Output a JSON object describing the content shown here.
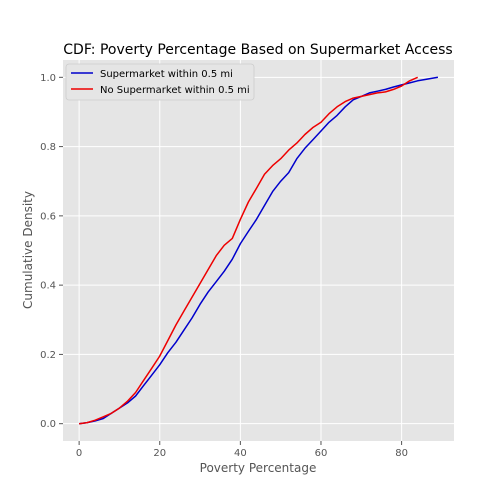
{
  "chart_data": {
    "type": "line",
    "title": "CDF: Poverty Percentage Based on Supermarket Access",
    "xlabel": "Poverty Percentage",
    "ylabel": "Cumulative Density",
    "xlim": [
      -4,
      93
    ],
    "ylim": [
      -0.05,
      1.05
    ],
    "xticks": [
      "0",
      "20",
      "40",
      "60",
      "80"
    ],
    "yticks": [
      "0.0",
      "0.2",
      "0.4",
      "0.6",
      "0.8",
      "1.0"
    ],
    "grid": true,
    "legend_position": "upper-left",
    "series": [
      {
        "name": "Supermarket within 0.5 mi",
        "color": "#0000cc",
        "x": [
          0,
          2,
          4,
          6,
          8,
          10,
          12,
          14,
          16,
          18,
          20,
          22,
          24,
          26,
          28,
          30,
          32,
          34,
          36,
          38,
          40,
          42,
          44,
          46,
          48,
          50,
          52,
          54,
          56,
          58,
          60,
          62,
          64,
          66,
          68,
          70,
          72,
          74,
          76,
          78,
          80,
          82,
          84,
          86,
          89
        ],
        "y": [
          0.0,
          0.003,
          0.008,
          0.015,
          0.03,
          0.045,
          0.06,
          0.08,
          0.11,
          0.14,
          0.17,
          0.205,
          0.235,
          0.27,
          0.305,
          0.345,
          0.38,
          0.41,
          0.44,
          0.475,
          0.52,
          0.555,
          0.59,
          0.63,
          0.67,
          0.7,
          0.725,
          0.765,
          0.795,
          0.82,
          0.845,
          0.87,
          0.89,
          0.915,
          0.935,
          0.945,
          0.955,
          0.96,
          0.965,
          0.972,
          0.978,
          0.984,
          0.99,
          0.994,
          1.0
        ]
      },
      {
        "name": "No Supermarket within 0.5 mi",
        "color": "#ee0000",
        "x": [
          0,
          2,
          4,
          6,
          8,
          10,
          12,
          14,
          16,
          18,
          20,
          22,
          24,
          26,
          28,
          30,
          32,
          34,
          36,
          38,
          40,
          42,
          44,
          46,
          48,
          50,
          52,
          54,
          56,
          58,
          60,
          62,
          64,
          66,
          68,
          70,
          72,
          74,
          76,
          78,
          80,
          82,
          84
        ],
        "y": [
          0.0,
          0.003,
          0.01,
          0.02,
          0.03,
          0.045,
          0.065,
          0.09,
          0.125,
          0.16,
          0.195,
          0.24,
          0.285,
          0.325,
          0.365,
          0.405,
          0.445,
          0.485,
          0.515,
          0.535,
          0.59,
          0.64,
          0.68,
          0.72,
          0.745,
          0.765,
          0.79,
          0.81,
          0.835,
          0.855,
          0.87,
          0.895,
          0.915,
          0.93,
          0.94,
          0.945,
          0.95,
          0.955,
          0.958,
          0.965,
          0.975,
          0.99,
          1.0
        ]
      }
    ]
  }
}
